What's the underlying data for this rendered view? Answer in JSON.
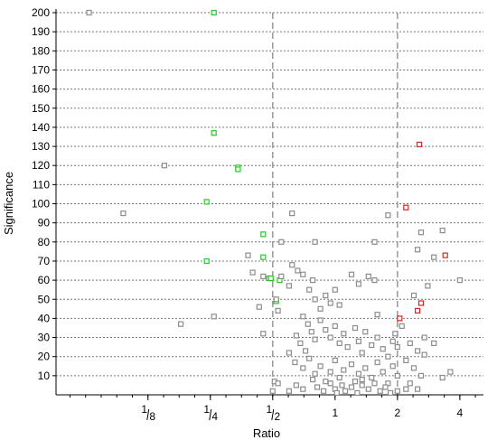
{
  "chart_data": {
    "type": "scatter",
    "title": "",
    "xlabel": "Ratio",
    "ylabel": "Significance",
    "x_scale": "log2",
    "xlim": [
      0.045,
      5.2
    ],
    "ylim": [
      0,
      200
    ],
    "y_ticks": [
      10,
      20,
      30,
      40,
      50,
      60,
      70,
      80,
      90,
      100,
      110,
      120,
      130,
      140,
      150,
      160,
      170,
      180,
      190,
      200
    ],
    "x_ticks": [
      {
        "value": 0.125,
        "num": "1",
        "den": "8"
      },
      {
        "value": 0.25,
        "num": "1",
        "den": "4"
      },
      {
        "value": 0.5,
        "num": "1",
        "den": "2"
      },
      {
        "value": 1,
        "label": "1"
      },
      {
        "value": 2,
        "label": "2"
      },
      {
        "value": 4,
        "label": "4"
      }
    ],
    "grid": {
      "horizontal_dotted": true
    },
    "reference_lines_x": [
      0.5,
      2
    ],
    "colors": {
      "gray": "#8c8c8c",
      "green": "#22cc22",
      "red": "#e02020",
      "axis": "#000000",
      "grid": "#777777",
      "refline": "#999999"
    },
    "series": [
      {
        "color_key": "green",
        "points": [
          [
            0.26,
            200
          ],
          [
            0.26,
            137
          ],
          [
            0.34,
            119
          ],
          [
            0.34,
            118
          ],
          [
            0.24,
            101
          ],
          [
            0.45,
            84
          ],
          [
            0.45,
            72
          ],
          [
            0.24,
            70
          ],
          [
            0.48,
            61
          ],
          [
            0.49,
            61
          ],
          [
            0.54,
            60
          ],
          [
            0.52,
            49
          ]
        ]
      },
      {
        "color_key": "red",
        "points": [
          [
            2.55,
            131
          ],
          [
            2.2,
            98
          ],
          [
            3.4,
            73
          ],
          [
            2.6,
            48
          ],
          [
            2.5,
            44
          ],
          [
            2.05,
            40
          ]
        ]
      },
      {
        "color_key": "gray",
        "points": [
          [
            0.065,
            200
          ],
          [
            0.15,
            120
          ],
          [
            0.095,
            95
          ],
          [
            0.62,
            95
          ],
          [
            0.55,
            80
          ],
          [
            0.8,
            80
          ],
          [
            1.8,
            94
          ],
          [
            1.55,
            80
          ],
          [
            3.3,
            86
          ],
          [
            2.6,
            85
          ],
          [
            2.5,
            76
          ],
          [
            3.0,
            72
          ],
          [
            4.0,
            60
          ],
          [
            2.8,
            57
          ],
          [
            2.4,
            52
          ],
          [
            0.38,
            73
          ],
          [
            0.4,
            64
          ],
          [
            0.45,
            62
          ],
          [
            0.43,
            46
          ],
          [
            0.26,
            41
          ],
          [
            0.18,
            37
          ],
          [
            0.45,
            32
          ],
          [
            0.52,
            50
          ],
          [
            0.53,
            44
          ],
          [
            0.51,
            7
          ],
          [
            0.53,
            6
          ],
          [
            0.5,
            2
          ],
          [
            0.55,
            62
          ],
          [
            0.62,
            68
          ],
          [
            0.66,
            65
          ],
          [
            0.7,
            63
          ],
          [
            0.78,
            60
          ],
          [
            0.6,
            57
          ],
          [
            0.75,
            55
          ],
          [
            0.8,
            50
          ],
          [
            0.85,
            45
          ],
          [
            0.9,
            52
          ],
          [
            0.95,
            48
          ],
          [
            1.0,
            55
          ],
          [
            1.05,
            47
          ],
          [
            1.2,
            63
          ],
          [
            1.3,
            58
          ],
          [
            1.45,
            62
          ],
          [
            1.55,
            60
          ],
          [
            1.6,
            42
          ],
          [
            0.7,
            41
          ],
          [
            0.74,
            37
          ],
          [
            0.77,
            33
          ],
          [
            0.8,
            29
          ],
          [
            0.65,
            31
          ],
          [
            0.68,
            27
          ],
          [
            0.72,
            23
          ],
          [
            0.85,
            39
          ],
          [
            0.9,
            34
          ],
          [
            0.95,
            30
          ],
          [
            1.0,
            36
          ],
          [
            1.05,
            27
          ],
          [
            1.1,
            32
          ],
          [
            1.15,
            25
          ],
          [
            1.25,
            35
          ],
          [
            1.3,
            28
          ],
          [
            1.35,
            22
          ],
          [
            1.4,
            33
          ],
          [
            1.5,
            26
          ],
          [
            1.6,
            30
          ],
          [
            1.7,
            24
          ],
          [
            1.8,
            20
          ],
          [
            1.9,
            28
          ],
          [
            2.0,
            25
          ],
          [
            0.6,
            22
          ],
          [
            0.64,
            17
          ],
          [
            0.7,
            14
          ],
          [
            0.75,
            19
          ],
          [
            0.8,
            11
          ],
          [
            0.85,
            15
          ],
          [
            0.9,
            7
          ],
          [
            0.95,
            12
          ],
          [
            1.0,
            18
          ],
          [
            1.05,
            9
          ],
          [
            1.1,
            13
          ],
          [
            1.2,
            16
          ],
          [
            1.25,
            7
          ],
          [
            1.3,
            11
          ],
          [
            1.35,
            5
          ],
          [
            1.4,
            14
          ],
          [
            1.5,
            9
          ],
          [
            1.6,
            17
          ],
          [
            1.7,
            12
          ],
          [
            1.8,
            6
          ],
          [
            1.9,
            15
          ],
          [
            2.0,
            10
          ],
          [
            0.6,
            2
          ],
          [
            0.65,
            5
          ],
          [
            0.7,
            3
          ],
          [
            0.78,
            8
          ],
          [
            0.82,
            4
          ],
          [
            0.88,
            2
          ],
          [
            0.95,
            6
          ],
          [
            1.0,
            3
          ],
          [
            1.02,
            1
          ],
          [
            1.08,
            5
          ],
          [
            1.12,
            2
          ],
          [
            1.2,
            4
          ],
          [
            1.28,
            1
          ],
          [
            1.35,
            8
          ],
          [
            1.45,
            3
          ],
          [
            1.55,
            6
          ],
          [
            1.65,
            2
          ],
          [
            1.75,
            4
          ],
          [
            1.85,
            1
          ],
          [
            2.0,
            2
          ],
          [
            2.3,
            27
          ],
          [
            2.5,
            23
          ],
          [
            2.7,
            21
          ],
          [
            2.2,
            18
          ],
          [
            2.4,
            14
          ],
          [
            2.6,
            10
          ],
          [
            2.3,
            6
          ],
          [
            2.5,
            3
          ],
          [
            3.0,
            27
          ],
          [
            3.3,
            9
          ],
          [
            3.6,
            12
          ],
          [
            2.2,
            3
          ],
          [
            2.7,
            30
          ],
          [
            1.95,
            32
          ],
          [
            2.1,
            36
          ]
        ]
      }
    ]
  }
}
